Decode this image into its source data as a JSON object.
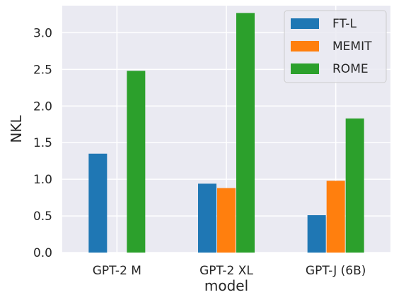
{
  "chart_data": {
    "type": "bar",
    "title": "",
    "xlabel": "model",
    "ylabel": "NKL",
    "categories": [
      "GPT-2 M",
      "GPT-2 XL",
      "GPT-J (6B)"
    ],
    "series": [
      {
        "name": "FT-L",
        "values": [
          1.35,
          0.94,
          0.51
        ],
        "color": "#1f77b4"
      },
      {
        "name": "MEMIT",
        "values": [
          null,
          0.88,
          0.98
        ],
        "color": "#ff7f0e"
      },
      {
        "name": "ROME",
        "values": [
          2.48,
          3.27,
          1.83
        ],
        "color": "#2ca02c"
      }
    ],
    "ylim": [
      0,
      3.37
    ],
    "yticks": [
      "0.0",
      "0.5",
      "1.0",
      "1.5",
      "2.0",
      "2.5",
      "3.0"
    ],
    "grid": true,
    "legend_position": "top-right",
    "plot_background": "#eaeaf2",
    "grid_color": "#ffffff"
  }
}
